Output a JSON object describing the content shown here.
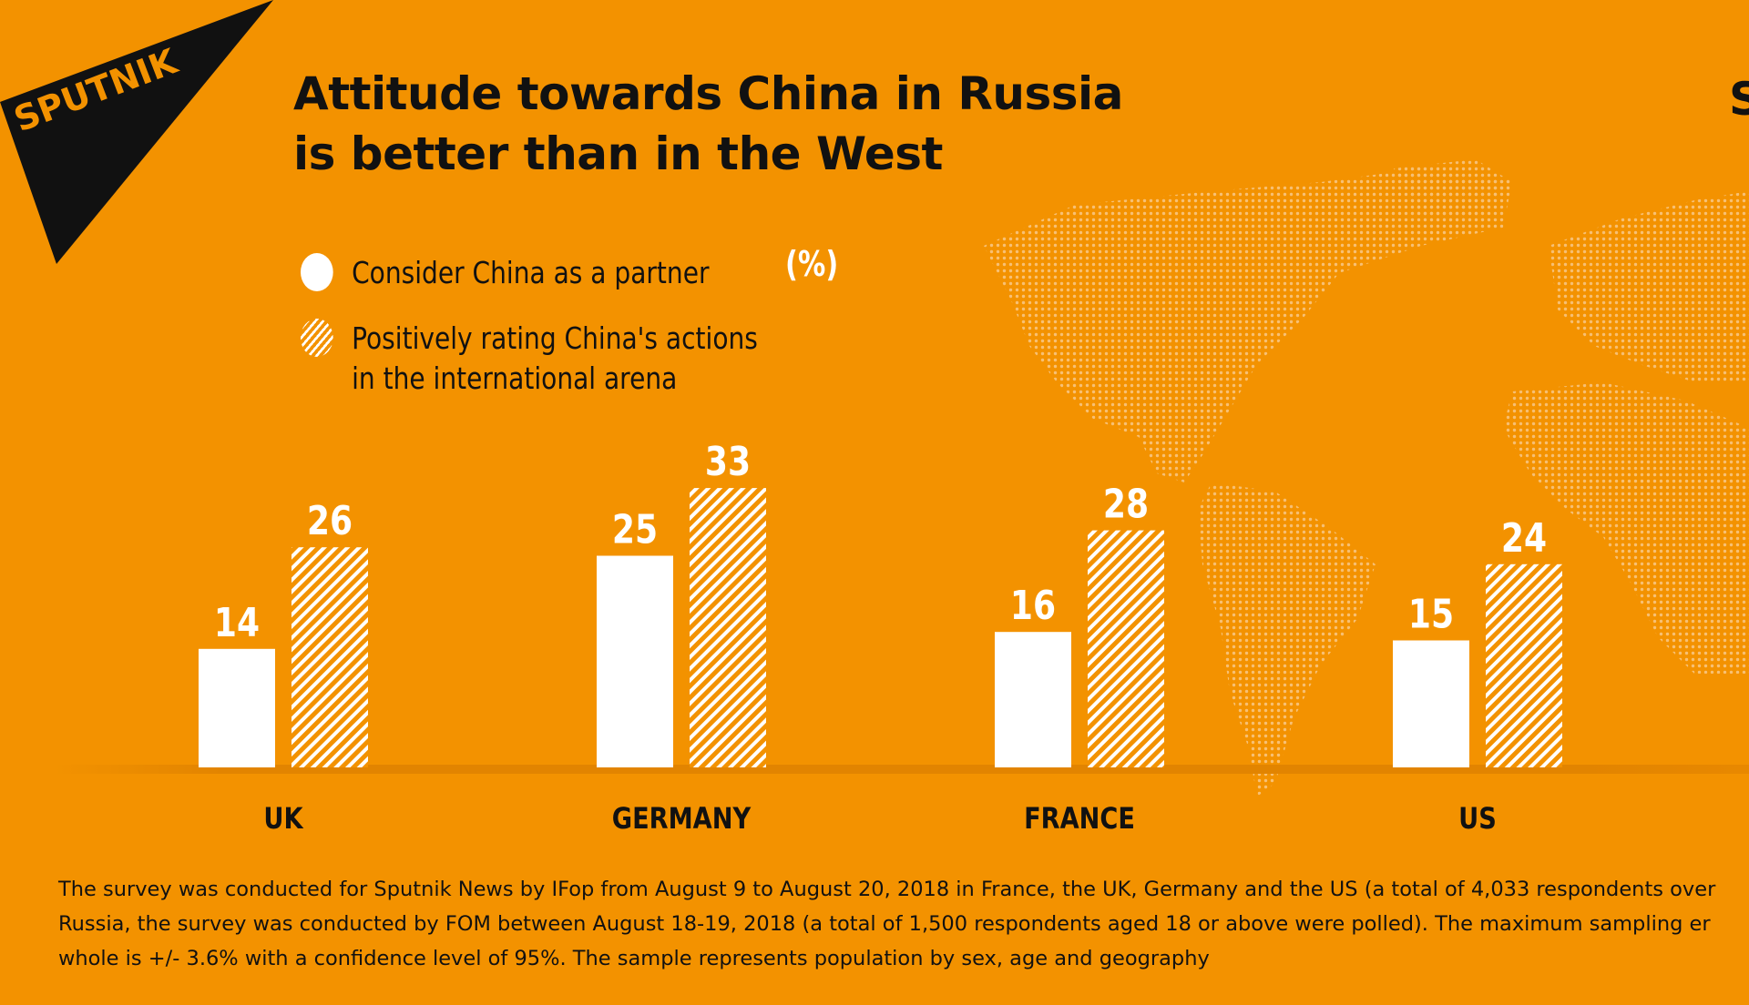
{
  "brand": {
    "logo_text": "SPUTNIK",
    "partial_logo_letter": "S"
  },
  "title": {
    "line1": "Attitude towards China in Russia",
    "line2": "is better than in the West"
  },
  "unit_label": "(%)",
  "colors": {
    "background": "#F39200",
    "bar": "#FFFFFF",
    "text": "#111111"
  },
  "chart_data": {
    "type": "bar",
    "categories": [
      "UK",
      "GERMANY",
      "FRANCE",
      "US"
    ],
    "series": [
      {
        "name": "Consider China as a partner",
        "values": [
          14,
          25,
          16,
          15
        ],
        "style": "solid"
      },
      {
        "name_line1": "Positively rating China's actions",
        "name_line2": "in the international arena",
        "values": [
          26,
          33,
          28,
          24
        ],
        "style": "hatched"
      }
    ],
    "ylim": [
      0,
      36
    ],
    "grid": false,
    "legend_placement": "top-left"
  },
  "footnote": {
    "line1": "The survey was conducted for Sputnik News by IFop from August 9 to August 20, 2018 in France, the UK, Germany and the US (a total of 4,033 respondents over",
    "line2": "Russia, the survey was conducted by FOM between August 18-19, 2018 (a total of 1,500 respondents aged 18 or above were polled). The maximum sampling er",
    "line3": "whole is +/- 3.6% with a confidence level of 95%. The sample represents population by sex, age and geography"
  }
}
